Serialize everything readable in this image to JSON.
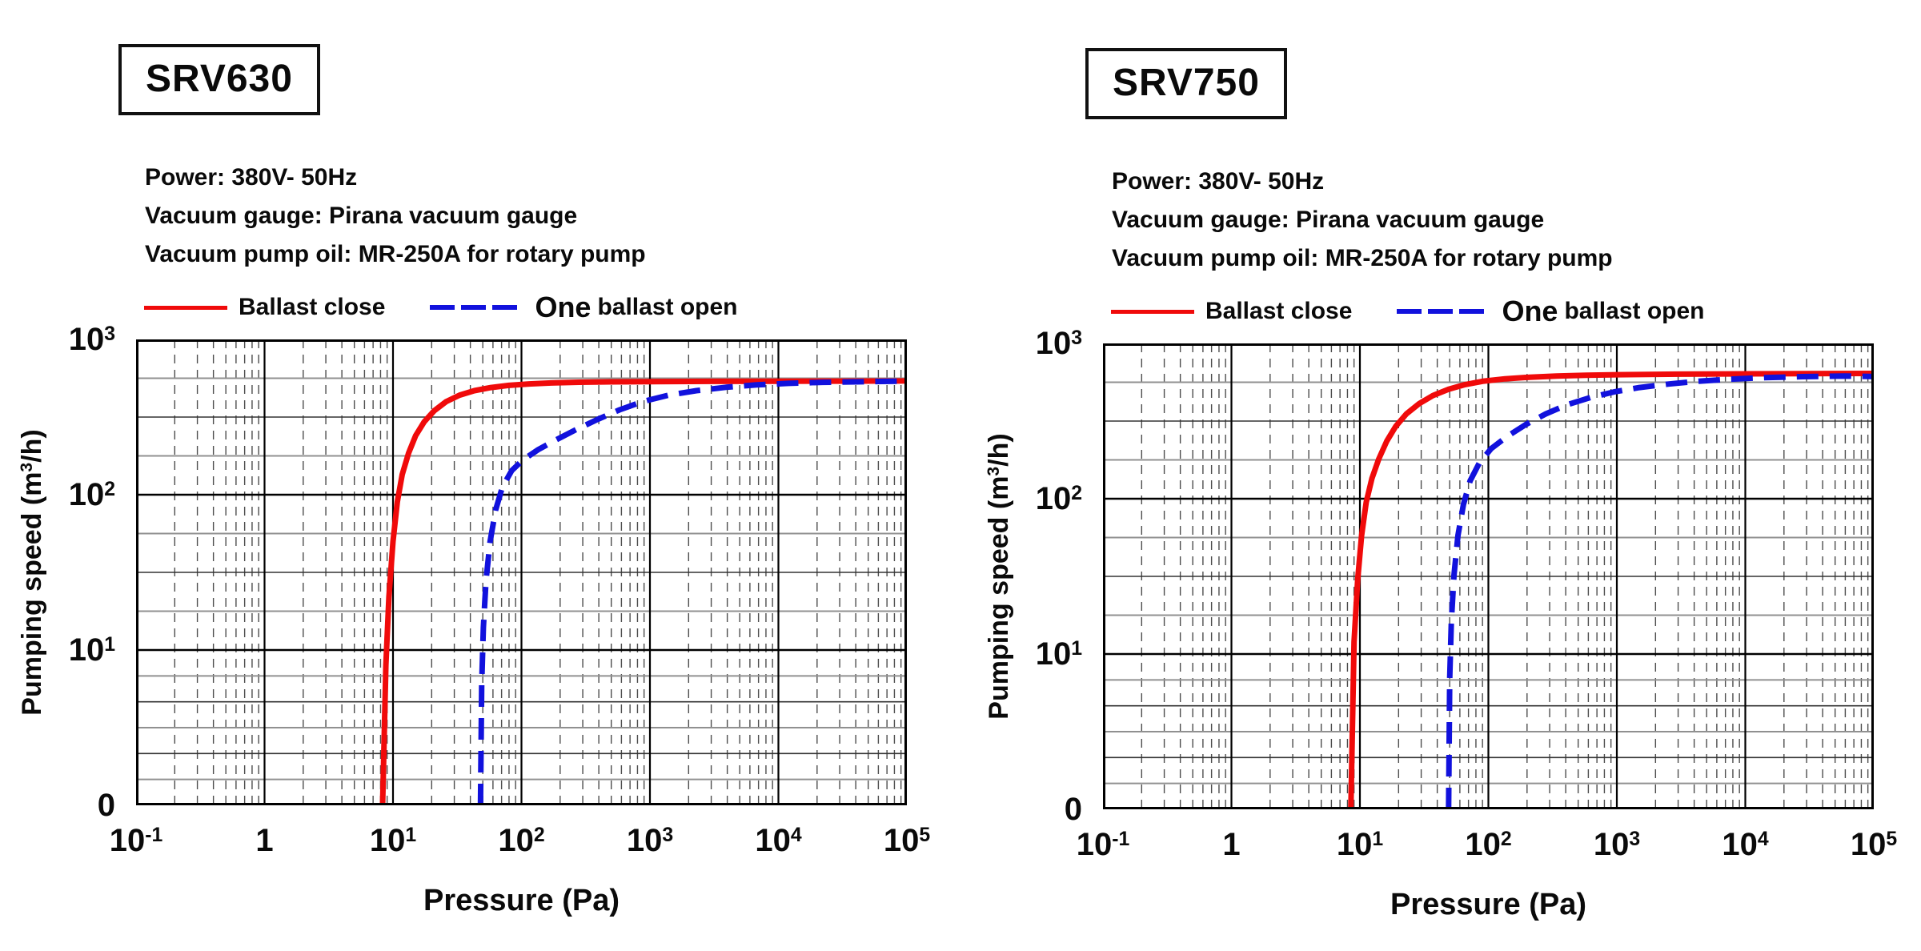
{
  "page": {
    "background": "#ffffff"
  },
  "legend": {
    "closed_label": "Ballast close",
    "open_label_big": "One",
    "open_label_rest": "ballast open"
  },
  "axes": {
    "x_label": "Pressure (Pa)",
    "y_label_parts": [
      "Pumping speed (m",
      "3",
      "/h)"
    ],
    "x_ticks": [
      "10^-1",
      "1",
      "10^1",
      "10^2",
      "10^3",
      "10^4",
      "10^5"
    ],
    "y_ticks": [
      "10^3",
      "10^2",
      "10^1",
      "0"
    ]
  },
  "chart_data": [
    {
      "type": "line",
      "model": "SRV630",
      "info": [
        "Power: 380V- 50Hz",
        "Vacuum gauge: Pirana vacuum gauge",
        "Vacuum pump oil: MR-250A for rotary pump"
      ],
      "x_axis": {
        "label": "Pressure (Pa)",
        "scale": "log",
        "range": [
          0.1,
          100000
        ],
        "ticks": [
          "10^-1",
          "1",
          "10^1",
          "10^2",
          "10^3",
          "10^4",
          "10^5"
        ]
      },
      "y_axis": {
        "label": "Pumping speed (m3/h)",
        "scale": "log",
        "range": [
          0,
          1000
        ],
        "ticks": [
          "0",
          "10^1",
          "10^2",
          "10^3"
        ]
      },
      "series": [
        {
          "name": "Ballast close",
          "color": "#f00a0a",
          "style": "solid",
          "points": [
            [
              8.3,
              0
            ],
            [
              8.8,
              8
            ],
            [
              9.3,
              22
            ],
            [
              10,
              50
            ],
            [
              10.8,
              90
            ],
            [
              11.8,
              135
            ],
            [
              13.2,
              185
            ],
            [
              15,
              240
            ],
            [
              17.5,
              295
            ],
            [
              21,
              348
            ],
            [
              26,
              398
            ],
            [
              33,
              438
            ],
            [
              43,
              468
            ],
            [
              58,
              490
            ],
            [
              80,
              506
            ],
            [
              115,
              517
            ],
            [
              170,
              524
            ],
            [
              280,
              530
            ],
            [
              500,
              533
            ],
            [
              1000,
              535
            ],
            [
              3000,
              537
            ],
            [
              10000,
              538
            ],
            [
              30000,
              539
            ],
            [
              100000,
              540
            ]
          ]
        },
        {
          "name": "One ballast open",
          "color": "#1111dd",
          "style": "dashed",
          "points": [
            [
              48,
              0
            ],
            [
              49,
              6
            ],
            [
              50.5,
              14
            ],
            [
              53,
              28
            ],
            [
              57,
              50
            ],
            [
              63,
              80
            ],
            [
              71,
              112
            ],
            [
              84,
              143
            ],
            [
              103,
              168
            ],
            [
              135,
              195
            ],
            [
              185,
              225
            ],
            [
              265,
              262
            ],
            [
              390,
              305
            ],
            [
              580,
              352
            ],
            [
              880,
              398
            ],
            [
              1400,
              438
            ],
            [
              2300,
              468
            ],
            [
              3900,
              492
            ],
            [
              6800,
              510
            ],
            [
              12000,
              521
            ],
            [
              22000,
              529
            ],
            [
              45000,
              534
            ],
            [
              100000,
              539
            ]
          ]
        }
      ]
    },
    {
      "type": "line",
      "model": "SRV750",
      "info": [
        "Power: 380V- 50Hz",
        "Vacuum gauge: Pirana vacuum gauge",
        "Vacuum pump oil: MR-250A for rotary pump"
      ],
      "x_axis": {
        "label": "Pressure (Pa)",
        "scale": "log",
        "range": [
          0.1,
          100000
        ],
        "ticks": [
          "10^-1",
          "1",
          "10^1",
          "10^2",
          "10^3",
          "10^4",
          "10^5"
        ]
      },
      "y_axis": {
        "label": "Pumping speed (m3/h)",
        "scale": "log",
        "range": [
          0,
          1000
        ],
        "ticks": [
          "0",
          "10^1",
          "10^2",
          "10^3"
        ]
      },
      "series": [
        {
          "name": "Ballast close",
          "color": "#f00a0a",
          "style": "solid",
          "points": [
            [
              8.5,
              0
            ],
            [
              9,
              12
            ],
            [
              9.6,
              30
            ],
            [
              10.3,
              58
            ],
            [
              11.2,
              95
            ],
            [
              12.4,
              135
            ],
            [
              14,
              180
            ],
            [
              16.2,
              235
            ],
            [
              19,
              292
            ],
            [
              23,
              352
            ],
            [
              29,
              410
            ],
            [
              37,
              462
            ],
            [
              49,
              507
            ],
            [
              66,
              543
            ],
            [
              92,
              572
            ],
            [
              135,
              592
            ],
            [
              210,
              606
            ],
            [
              340,
              616
            ],
            [
              580,
              624
            ],
            [
              1000,
              629
            ],
            [
              3000,
              634
            ],
            [
              10000,
              637
            ],
            [
              100000,
              641
            ]
          ]
        },
        {
          "name": "One ballast open",
          "color": "#1111dd",
          "style": "dashed",
          "points": [
            [
              49,
              0
            ],
            [
              50,
              7
            ],
            [
              51.5,
              16
            ],
            [
              54,
              32
            ],
            [
              58,
              58
            ],
            [
              64,
              92
            ],
            [
              72,
              130
            ],
            [
              85,
              170
            ],
            [
              105,
              210
            ],
            [
              140,
              252
            ],
            [
              195,
              300
            ],
            [
              280,
              352
            ],
            [
              410,
              403
            ],
            [
              620,
              448
            ],
            [
              950,
              487
            ],
            [
              1500,
              520
            ],
            [
              2500,
              547
            ],
            [
              4200,
              570
            ],
            [
              7500,
              588
            ],
            [
              14000,
              602
            ],
            [
              28000,
              611
            ],
            [
              60000,
              616
            ],
            [
              100000,
              612
            ]
          ]
        }
      ]
    }
  ]
}
